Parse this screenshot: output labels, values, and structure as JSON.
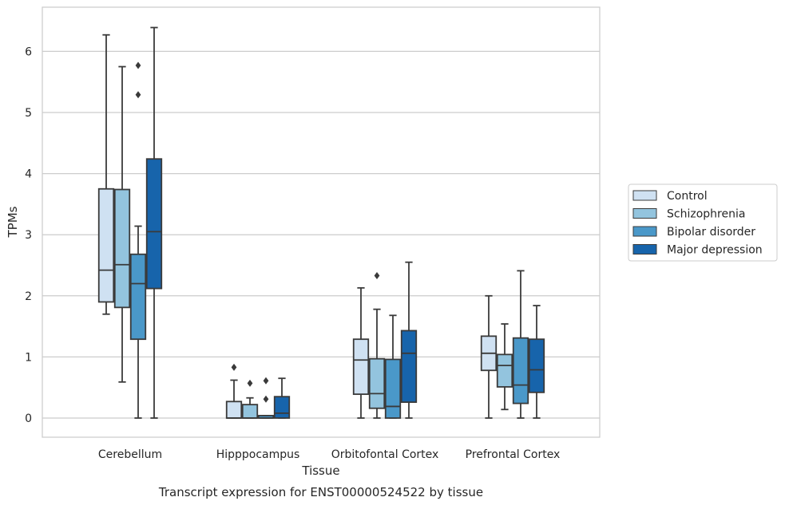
{
  "caption": "Transcript expression for ENST00000524522 by tissue",
  "chart_data": {
    "type": "box",
    "xlabel": "Tissue",
    "ylabel": "TPMs",
    "ylim": [
      -0.3,
      6.7
    ],
    "yticks": [
      0,
      1,
      2,
      3,
      4,
      5,
      6
    ],
    "grid": "horizontal",
    "legend_position": "right",
    "categories": [
      "Cerebellum",
      "Hipppocampus",
      "Orbitofontal Cortex",
      "Prefrontal Cortex"
    ],
    "series": [
      {
        "name": "Control",
        "color": "#cfe1f2",
        "boxes": [
          {
            "whislo": 1.7,
            "q1": 1.9,
            "med": 2.42,
            "q3": 3.75,
            "whishi": 6.27,
            "fliers": []
          },
          {
            "whislo": 0.0,
            "q1": 0.0,
            "med": 0.0,
            "q3": 0.27,
            "whishi": 0.62,
            "fliers": [
              0.83
            ]
          },
          {
            "whislo": 0.0,
            "q1": 0.39,
            "med": 0.95,
            "q3": 1.29,
            "whishi": 2.13,
            "fliers": []
          },
          {
            "whislo": 0.0,
            "q1": 0.78,
            "med": 1.06,
            "q3": 1.34,
            "whishi": 2.0,
            "fliers": []
          }
        ]
      },
      {
        "name": "Schizophrenia",
        "color": "#93c4de",
        "boxes": [
          {
            "whislo": 0.59,
            "q1": 1.81,
            "med": 2.51,
            "q3": 3.74,
            "whishi": 5.75,
            "fliers": []
          },
          {
            "whislo": 0.0,
            "q1": 0.0,
            "med": 0.0,
            "q3": 0.22,
            "whishi": 0.33,
            "fliers": [
              0.57
            ]
          },
          {
            "whislo": 0.0,
            "q1": 0.16,
            "med": 0.4,
            "q3": 0.97,
            "whishi": 1.78,
            "fliers": [
              2.33
            ]
          },
          {
            "whislo": 0.14,
            "q1": 0.51,
            "med": 0.86,
            "q3": 1.04,
            "whishi": 1.54,
            "fliers": []
          }
        ]
      },
      {
        "name": "Bipolar disorder",
        "color": "#4a98c9",
        "boxes": [
          {
            "whislo": 0.0,
            "q1": 1.29,
            "med": 2.2,
            "q3": 2.68,
            "whishi": 3.14,
            "fliers": [
              5.29,
              5.77
            ]
          },
          {
            "whislo": 0.0,
            "q1": 0.0,
            "med": 0.0,
            "q3": 0.04,
            "whishi": 0.04,
            "fliers": [
              0.31,
              0.61
            ]
          },
          {
            "whislo": 0.0,
            "q1": 0.0,
            "med": 0.19,
            "q3": 0.96,
            "whishi": 1.68,
            "fliers": []
          },
          {
            "whislo": 0.0,
            "q1": 0.24,
            "med": 0.54,
            "q3": 1.31,
            "whishi": 2.41,
            "fliers": []
          }
        ]
      },
      {
        "name": "Major depression",
        "color": "#1764ab",
        "boxes": [
          {
            "whislo": 0.0,
            "q1": 2.12,
            "med": 3.05,
            "q3": 4.24,
            "whishi": 6.39,
            "fliers": []
          },
          {
            "whislo": 0.0,
            "q1": 0.0,
            "med": 0.08,
            "q3": 0.35,
            "whishi": 0.65,
            "fliers": []
          },
          {
            "whislo": 0.0,
            "q1": 0.26,
            "med": 1.06,
            "q3": 1.43,
            "whishi": 2.55,
            "fliers": []
          },
          {
            "whislo": 0.0,
            "q1": 0.42,
            "med": 0.79,
            "q3": 1.29,
            "whishi": 1.84,
            "fliers": []
          }
        ]
      }
    ]
  }
}
